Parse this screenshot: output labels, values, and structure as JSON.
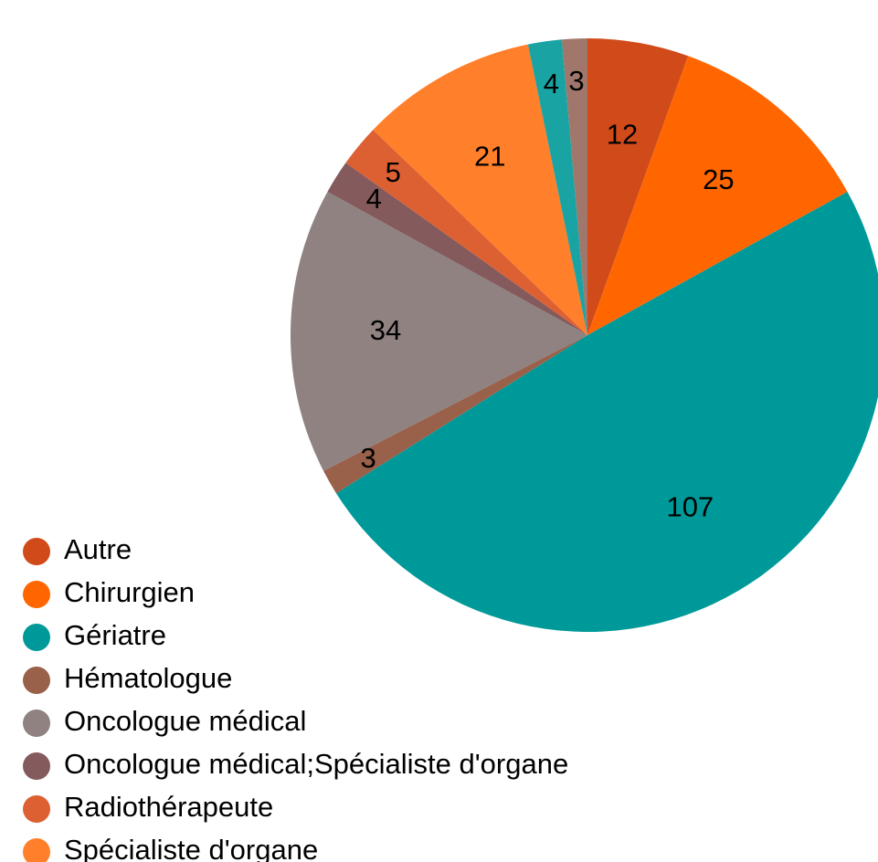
{
  "chart_data": {
    "type": "pie",
    "categories": [
      "Autre",
      "Chirurgien",
      "Gériatre",
      "Hématologue",
      "Oncologue médical",
      "Oncologue médical;Spécialiste d'organe",
      "Radiothérapeute",
      "Spécialiste d'organe",
      null,
      null
    ],
    "values": [
      12,
      25,
      107,
      3,
      34,
      4,
      5,
      21,
      4,
      3
    ],
    "colors": [
      "#d14a1a",
      "#ff6600",
      "#009999",
      "#99604a",
      "#8f8281",
      "#845a5c",
      "#dd6033",
      "#ff7f2a",
      "#1aa3a3",
      "#a0776a"
    ],
    "legend": "bottom-left"
  }
}
